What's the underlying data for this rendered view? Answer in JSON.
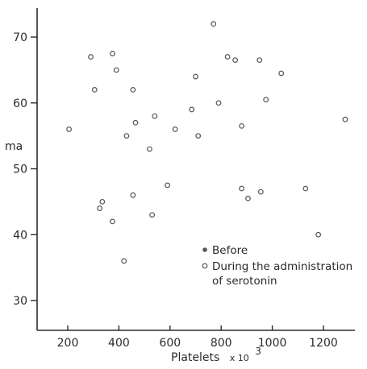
{
  "chart_data": {
    "type": "scatter",
    "title": "",
    "xlabel": "Platelets",
    "xlabel_suffix": "x 10",
    "xlabel_exponent": "3",
    "ylabel": "ma",
    "xlim": [
      100,
      1380
    ],
    "ylim": [
      25,
      74
    ],
    "x_ticks": [
      200,
      400,
      600,
      800,
      1000,
      1200
    ],
    "y_ticks": [
      30,
      40,
      50,
      60,
      70
    ],
    "grid": false,
    "legend_position": "lower-right",
    "colors": {
      "axis": "#2b2b2b",
      "marker": "#555555"
    },
    "series": [
      {
        "name": "Before",
        "marker": "filled-dot",
        "points": []
      },
      {
        "name": "During the administration of serotonin",
        "legend_lines": [
          "During the administration",
          "of serotonin"
        ],
        "marker": "open-circle",
        "points": [
          [
            205,
            56
          ],
          [
            290,
            67
          ],
          [
            305,
            62
          ],
          [
            375,
            67.5
          ],
          [
            390,
            65
          ],
          [
            455,
            62
          ],
          [
            430,
            55
          ],
          [
            465,
            57
          ],
          [
            520,
            53
          ],
          [
            540,
            58
          ],
          [
            325,
            44
          ],
          [
            335,
            45
          ],
          [
            375,
            42
          ],
          [
            455,
            46
          ],
          [
            420,
            36
          ],
          [
            530,
            43
          ],
          [
            590,
            47.5
          ],
          [
            620,
            56
          ],
          [
            685,
            59
          ],
          [
            700,
            64
          ],
          [
            710,
            55
          ],
          [
            770,
            72
          ],
          [
            790,
            60
          ],
          [
            825,
            67
          ],
          [
            855,
            66.5
          ],
          [
            880,
            56.5
          ],
          [
            880,
            47
          ],
          [
            905,
            45.5
          ],
          [
            950,
            66.5
          ],
          [
            975,
            60.5
          ],
          [
            955,
            46.5
          ],
          [
            1035,
            64.5
          ],
          [
            1130,
            47
          ],
          [
            1180,
            40
          ],
          [
            1285,
            57.5
          ]
        ]
      }
    ]
  }
}
